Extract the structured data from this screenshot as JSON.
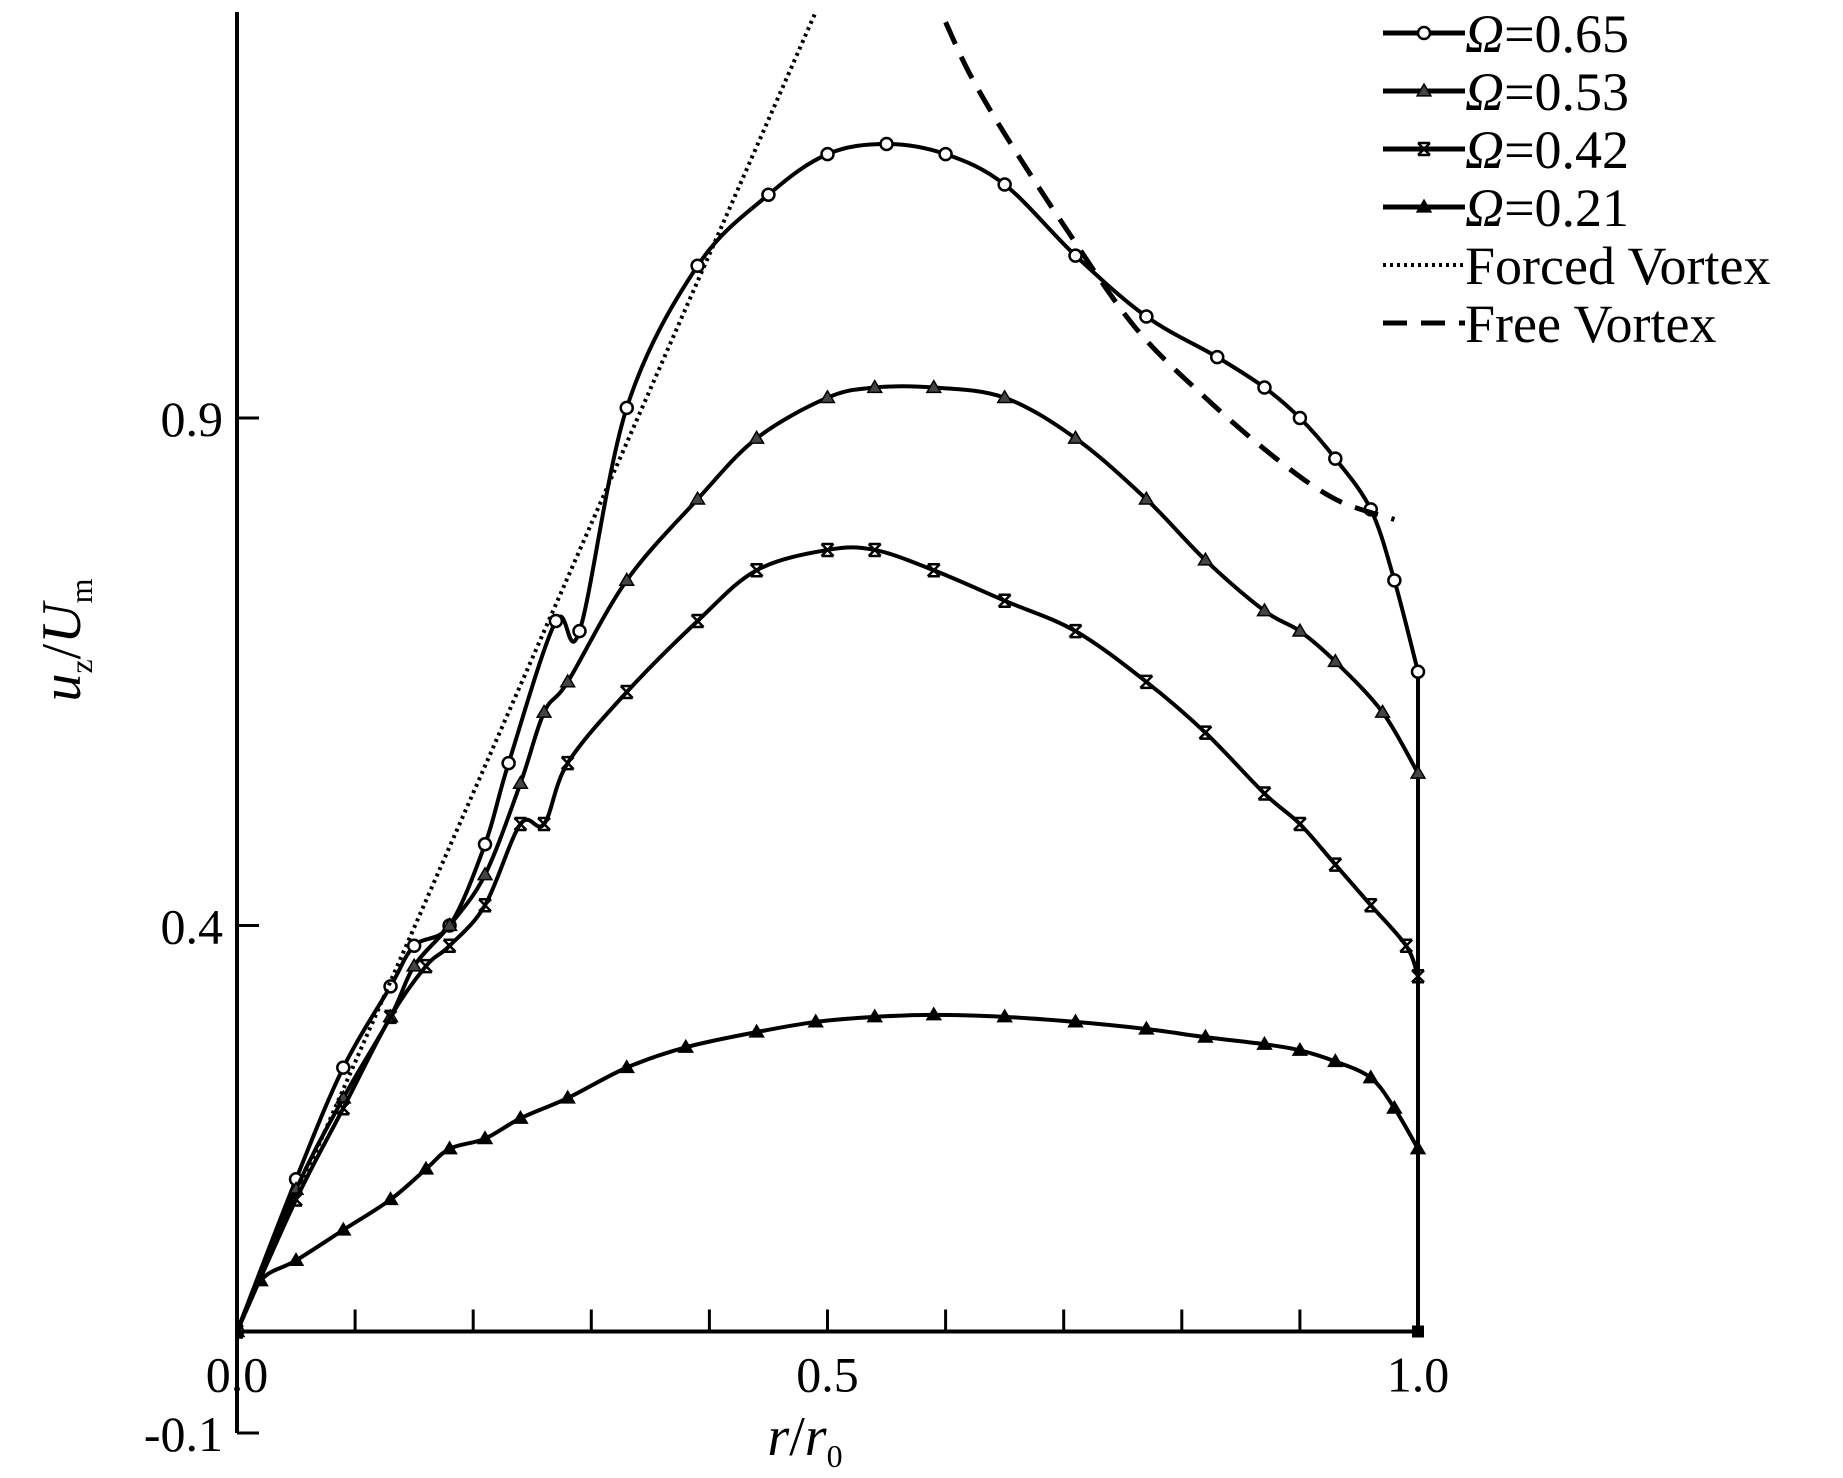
{
  "chart_data": {
    "type": "line",
    "title": "",
    "xlabel": {
      "main": "r",
      "sep": "/",
      "main2": "r",
      "sub2": "0"
    },
    "ylabel": {
      "main": "u",
      "sub": "z",
      "sep": "/",
      "main2": "U",
      "sub2": "m"
    },
    "xlim": [
      0,
      1.0
    ],
    "ylim": [
      -0.1,
      1.3
    ],
    "xticks": [
      0.0,
      0.1,
      0.2,
      0.3,
      0.4,
      0.5,
      0.6,
      0.7,
      0.8,
      0.9,
      1.0
    ],
    "xtick_labels": [
      "0.0",
      "0.5",
      "1.0"
    ],
    "xtick_label_values": [
      0.0,
      0.5,
      1.0
    ],
    "yticks": [
      -0.1,
      0.4,
      0.9
    ],
    "ytick_labels": [
      "-0.1",
      "0.4",
      "0.9"
    ],
    "grid": false,
    "legend_position": "top-right",
    "series": [
      {
        "name": "Ω=0.65",
        "symbol": "Ω",
        "value_label": "=0.65",
        "marker": "circle",
        "x": [
          0.0,
          0.05,
          0.09,
          0.13,
          0.15,
          0.18,
          0.21,
          0.23,
          0.27,
          0.29,
          0.33,
          0.39,
          0.45,
          0.5,
          0.55,
          0.6,
          0.65,
          0.71,
          0.77,
          0.83,
          0.87,
          0.9,
          0.93,
          0.96,
          0.98,
          1.0
        ],
        "y": [
          0.0,
          0.15,
          0.26,
          0.34,
          0.38,
          0.4,
          0.48,
          0.56,
          0.7,
          0.69,
          0.91,
          1.05,
          1.12,
          1.16,
          1.17,
          1.16,
          1.13,
          1.06,
          1.0,
          0.96,
          0.93,
          0.9,
          0.86,
          0.81,
          0.74,
          0.65
        ]
      },
      {
        "name": "Ω=0.53",
        "symbol": "Ω",
        "value_label": "=0.53",
        "marker": "triangle",
        "x": [
          0.0,
          0.05,
          0.09,
          0.13,
          0.15,
          0.18,
          0.21,
          0.24,
          0.26,
          0.28,
          0.33,
          0.39,
          0.44,
          0.5,
          0.54,
          0.59,
          0.65,
          0.71,
          0.77,
          0.82,
          0.87,
          0.9,
          0.93,
          0.97,
          1.0
        ],
        "y": [
          0.0,
          0.14,
          0.23,
          0.31,
          0.36,
          0.4,
          0.45,
          0.54,
          0.61,
          0.64,
          0.74,
          0.82,
          0.88,
          0.92,
          0.93,
          0.93,
          0.92,
          0.88,
          0.82,
          0.76,
          0.71,
          0.69,
          0.66,
          0.61,
          0.55
        ]
      },
      {
        "name": "Ω=0.42",
        "symbol": "Ω",
        "value_label": "=0.42",
        "marker": "x",
        "x": [
          0.0,
          0.05,
          0.09,
          0.13,
          0.16,
          0.18,
          0.21,
          0.24,
          0.26,
          0.28,
          0.33,
          0.39,
          0.44,
          0.5,
          0.54,
          0.59,
          0.65,
          0.71,
          0.77,
          0.82,
          0.87,
          0.9,
          0.93,
          0.96,
          0.99,
          1.0
        ],
        "y": [
          0.0,
          0.13,
          0.22,
          0.31,
          0.36,
          0.38,
          0.42,
          0.5,
          0.5,
          0.56,
          0.63,
          0.7,
          0.75,
          0.77,
          0.77,
          0.75,
          0.72,
          0.69,
          0.64,
          0.59,
          0.53,
          0.5,
          0.46,
          0.42,
          0.38,
          0.35
        ]
      },
      {
        "name": "Ω=0.21",
        "symbol": "Ω",
        "value_label": "=0.21",
        "marker": "triangle-filled",
        "x": [
          0.0,
          0.02,
          0.05,
          0.09,
          0.13,
          0.16,
          0.18,
          0.21,
          0.24,
          0.28,
          0.33,
          0.38,
          0.44,
          0.49,
          0.54,
          0.59,
          0.65,
          0.71,
          0.77,
          0.82,
          0.87,
          0.9,
          0.93,
          0.96,
          0.98,
          1.0
        ],
        "y": [
          0.0,
          0.05,
          0.07,
          0.1,
          0.13,
          0.16,
          0.18,
          0.19,
          0.21,
          0.23,
          0.26,
          0.28,
          0.295,
          0.305,
          0.31,
          0.312,
          0.31,
          0.305,
          0.298,
          0.29,
          0.283,
          0.277,
          0.266,
          0.25,
          0.22,
          0.18
        ]
      },
      {
        "name": "Forced Vortex",
        "style": "dotted",
        "x": [
          0.0,
          0.49
        ],
        "y": [
          0.0,
          1.3
        ]
      },
      {
        "name": "Free Vortex",
        "style": "dashed",
        "x": [
          0.6,
          0.62,
          0.65,
          0.7,
          0.76,
          0.82,
          0.88,
          0.93,
          0.98
        ],
        "y": [
          1.29,
          1.24,
          1.18,
          1.09,
          0.99,
          0.92,
          0.86,
          0.82,
          0.8
        ]
      }
    ]
  }
}
